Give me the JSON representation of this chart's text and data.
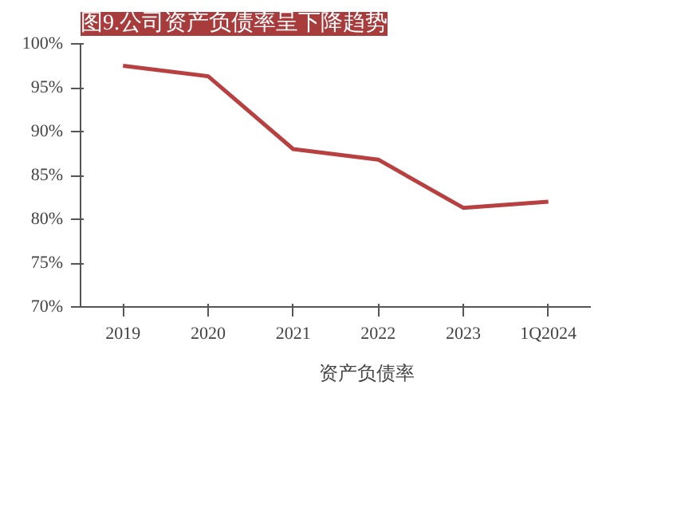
{
  "chart_data": {
    "type": "line",
    "title": "图9.公司资产负债率呈下降趋势",
    "categories": [
      "2019",
      "2020",
      "2021",
      "2022",
      "2023",
      "1Q2024"
    ],
    "series": [
      {
        "name": "资产负债率",
        "color": "#b84040",
        "values": [
          97.5,
          96.3,
          88.0,
          86.8,
          81.3,
          82.0
        ]
      }
    ],
    "ylim": [
      70,
      100
    ],
    "yticks": [
      {
        "value": 70,
        "label": "70%"
      },
      {
        "value": 75,
        "label": "75%"
      },
      {
        "value": 80,
        "label": "80%"
      },
      {
        "value": 85,
        "label": "85%"
      },
      {
        "value": 90,
        "label": "90%"
      },
      {
        "value": 95,
        "label": "95%"
      },
      {
        "value": 100,
        "label": "100%"
      }
    ],
    "grid": false,
    "legend": "bottom",
    "marker": "none",
    "line_style": "solid"
  }
}
